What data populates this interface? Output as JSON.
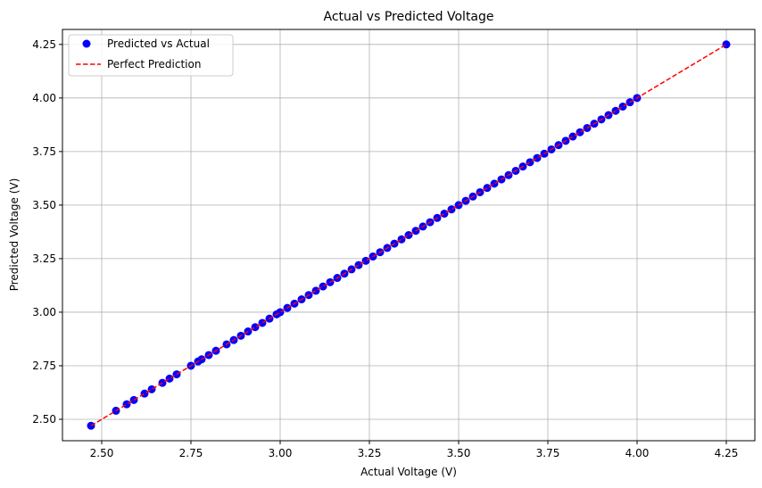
{
  "chart_data": {
    "type": "scatter",
    "title": "Actual vs Predicted Voltage",
    "xlabel": "Actual Voltage (V)",
    "ylabel": "Predicted Voltage (V)",
    "xlim": [
      2.39,
      4.33
    ],
    "ylim": [
      2.4,
      4.32
    ],
    "xticks": [
      2.5,
      2.75,
      3.0,
      3.25,
      3.5,
      3.75,
      4.0,
      4.25
    ],
    "yticks": [
      2.5,
      2.75,
      3.0,
      3.25,
      3.5,
      3.75,
      4.0,
      4.25
    ],
    "xtick_labels": [
      "2.50",
      "2.75",
      "3.00",
      "3.25",
      "3.50",
      "3.75",
      "4.00",
      "4.25"
    ],
    "ytick_labels": [
      "2.50",
      "2.75",
      "3.00",
      "3.25",
      "3.50",
      "3.75",
      "4.00",
      "4.25"
    ],
    "grid": true,
    "legend_position": "top-left",
    "series": [
      {
        "name": "Predicted vs Actual",
        "kind": "scatter",
        "color": "#0000ff",
        "x": [
          2.47,
          2.54,
          2.57,
          2.59,
          2.62,
          2.64,
          2.67,
          2.69,
          2.71,
          2.75,
          2.77,
          2.78,
          2.8,
          2.82,
          2.85,
          2.87,
          2.89,
          2.91,
          2.93,
          2.95,
          2.97,
          2.99,
          3.0,
          3.02,
          3.04,
          3.06,
          3.08,
          3.1,
          3.12,
          3.14,
          3.16,
          3.18,
          3.2,
          3.22,
          3.24,
          3.26,
          3.28,
          3.3,
          3.32,
          3.34,
          3.36,
          3.38,
          3.4,
          3.42,
          3.44,
          3.46,
          3.48,
          3.5,
          3.52,
          3.54,
          3.56,
          3.58,
          3.6,
          3.62,
          3.64,
          3.66,
          3.68,
          3.7,
          3.72,
          3.74,
          3.76,
          3.78,
          3.8,
          3.82,
          3.84,
          3.86,
          3.88,
          3.9,
          3.92,
          3.94,
          3.96,
          3.98,
          4.0,
          4.25
        ],
        "y": [
          2.47,
          2.54,
          2.57,
          2.59,
          2.62,
          2.64,
          2.67,
          2.69,
          2.71,
          2.75,
          2.77,
          2.78,
          2.8,
          2.82,
          2.85,
          2.87,
          2.89,
          2.91,
          2.93,
          2.95,
          2.97,
          2.99,
          3.0,
          3.02,
          3.04,
          3.06,
          3.08,
          3.1,
          3.12,
          3.14,
          3.16,
          3.18,
          3.2,
          3.22,
          3.24,
          3.26,
          3.28,
          3.3,
          3.32,
          3.34,
          3.36,
          3.38,
          3.4,
          3.42,
          3.44,
          3.46,
          3.48,
          3.5,
          3.52,
          3.54,
          3.56,
          3.58,
          3.6,
          3.62,
          3.64,
          3.66,
          3.68,
          3.7,
          3.72,
          3.74,
          3.76,
          3.78,
          3.8,
          3.82,
          3.84,
          3.86,
          3.88,
          3.9,
          3.92,
          3.94,
          3.96,
          3.98,
          4.0,
          4.25
        ]
      },
      {
        "name": "Perfect Prediction",
        "kind": "line",
        "style": "dashed",
        "color": "#ff0000",
        "x": [
          2.47,
          4.25
        ],
        "y": [
          2.47,
          4.25
        ]
      }
    ]
  }
}
